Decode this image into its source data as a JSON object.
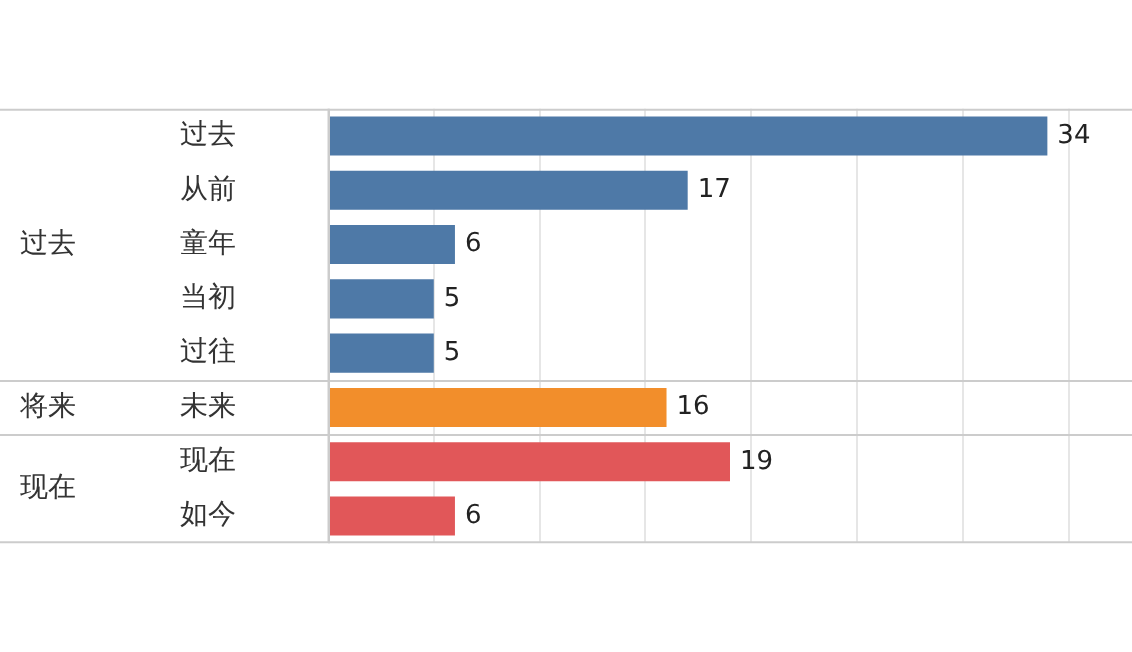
{
  "chart_data": {
    "type": "bar",
    "orientation": "horizontal",
    "categories": [
      "过去",
      "从前",
      "童年",
      "当初",
      "过往",
      "未来",
      "现在",
      "如今"
    ],
    "values": [
      34,
      17,
      6,
      5,
      5,
      16,
      19,
      6
    ],
    "colors": [
      "#4e79a7",
      "#4e79a7",
      "#4e79a7",
      "#4e79a7",
      "#4e79a7",
      "#f28e2b",
      "#e15759",
      "#e15759"
    ],
    "annotations": [
      "过去",
      "将来",
      "现在"
    ],
    "xlim": [
      0,
      38
    ],
    "xticks": [
      {
        "value": 0,
        "label": null
      },
      {
        "value": 5,
        "label": null
      },
      {
        "value": 10,
        "label": null
      },
      {
        "value": 15,
        "label": null
      },
      {
        "value": 20,
        "label": null
      },
      {
        "value": 25,
        "label": null
      },
      {
        "value": 30,
        "label": null
      },
      {
        "value": 35,
        "label": null
      }
    ],
    "tick_labels": "y",
    "grid": "x",
    "data_labels": true,
    "legend": false
  }
}
